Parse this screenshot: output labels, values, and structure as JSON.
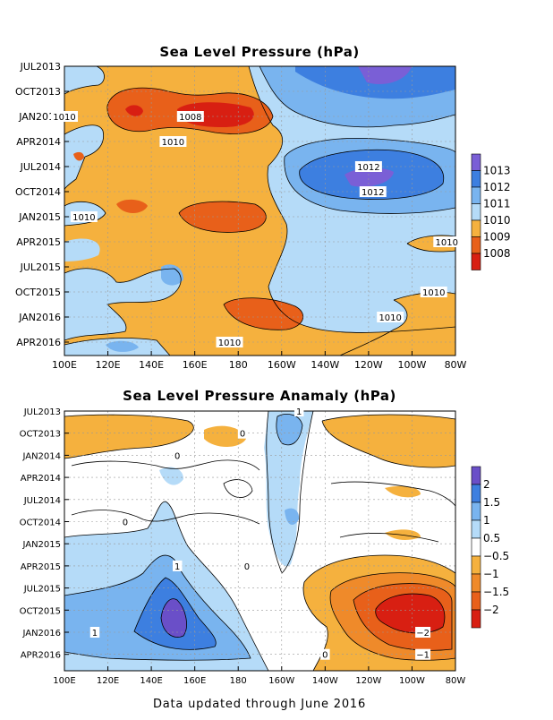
{
  "footer": "Data updated through June 2016",
  "chart_data": [
    {
      "type": "heatmap",
      "title": "Sea Level Pressure (hPa)",
      "xlabel": "",
      "ylabel": "",
      "x_ticks": [
        "100E",
        "120E",
        "140E",
        "160E",
        "180",
        "160W",
        "140W",
        "120W",
        "100W",
        "80W"
      ],
      "y_ticks": [
        "JUL2013",
        "OCT2013",
        "JAN2014",
        "APR2014",
        "JUL2014",
        "OCT2014",
        "JAN2015",
        "APR2015",
        "JUL2015",
        "OCT2015",
        "JAN2016",
        "APR2016"
      ],
      "colorbar": {
        "levels": [
          "1013",
          "1012",
          "1011",
          "1010",
          "1009",
          "1008"
        ],
        "colors": [
          "#7a5fd6",
          "#3d7fe0",
          "#79b4ef",
          "#b5dbf8",
          "#f5b13e",
          "#e8601a",
          "#d81f12"
        ]
      },
      "contour_labels": [
        {
          "text": "1010",
          "lon": 100,
          "time": "JAN2014"
        },
        {
          "text": "1008",
          "lon": 158,
          "time": "JAN2014"
        },
        {
          "text": "1010",
          "lon": 150,
          "time": "APR2014"
        },
        {
          "text": "1012",
          "lon": -120,
          "time": "JUL2014"
        },
        {
          "text": "1012",
          "lon": -118,
          "time": "OCT2014"
        },
        {
          "text": "1010",
          "lon": 109,
          "time": "JAN2015"
        },
        {
          "text": "1010",
          "lon": -84,
          "time": "APR2015"
        },
        {
          "text": "1010",
          "lon": -90,
          "time": "OCT2015"
        },
        {
          "text": "1010",
          "lon": -110,
          "time": "JAN2016"
        },
        {
          "text": "1010",
          "lon": 176,
          "time": "APR2016"
        }
      ],
      "grid": true
    },
    {
      "type": "heatmap",
      "title": "Sea Level Pressure Anamaly (hPa)",
      "xlabel": "",
      "ylabel": "",
      "x_ticks": [
        "100E",
        "120E",
        "140E",
        "160E",
        "180",
        "160W",
        "140W",
        "120W",
        "100W",
        "80W"
      ],
      "y_ticks": [
        "JUL2013",
        "OCT2013",
        "JAN2014",
        "APR2014",
        "JUL2014",
        "OCT2014",
        "JAN2015",
        "APR2015",
        "JUL2015",
        "OCT2015",
        "JAN2016",
        "APR2016"
      ],
      "colorbar": {
        "levels": [
          "2",
          "1.5",
          "1",
          "0.5",
          "−0.5",
          "−1",
          "−1.5",
          "−2"
        ],
        "colors": [
          "#6a4fc8",
          "#3d7fe0",
          "#79b4ef",
          "#b5dbf8",
          "#ffffff",
          "#f5b13e",
          "#ef8a2a",
          "#e8601a",
          "#d81f12"
        ]
      },
      "contour_labels": [
        {
          "text": "0",
          "lon": -178,
          "time": "OCT2013"
        },
        {
          "text": "1",
          "lon": -152,
          "time": "JUL2013"
        },
        {
          "text": "0",
          "lon": 152,
          "time": "JAN2014"
        },
        {
          "text": "0",
          "lon": 128,
          "time": "OCT2014"
        },
        {
          "text": "1",
          "lon": 152,
          "time": "APR2015"
        },
        {
          "text": "0",
          "lon": -176,
          "time": "APR2015"
        },
        {
          "text": "1",
          "lon": 114,
          "time": "JAN2016"
        },
        {
          "text": "−2",
          "lon": -95,
          "time": "JAN2016"
        },
        {
          "text": "−1",
          "lon": -95,
          "time": "APR2016"
        },
        {
          "text": "0",
          "lon": -140,
          "time": "APR2016"
        }
      ],
      "grid": true
    }
  ]
}
